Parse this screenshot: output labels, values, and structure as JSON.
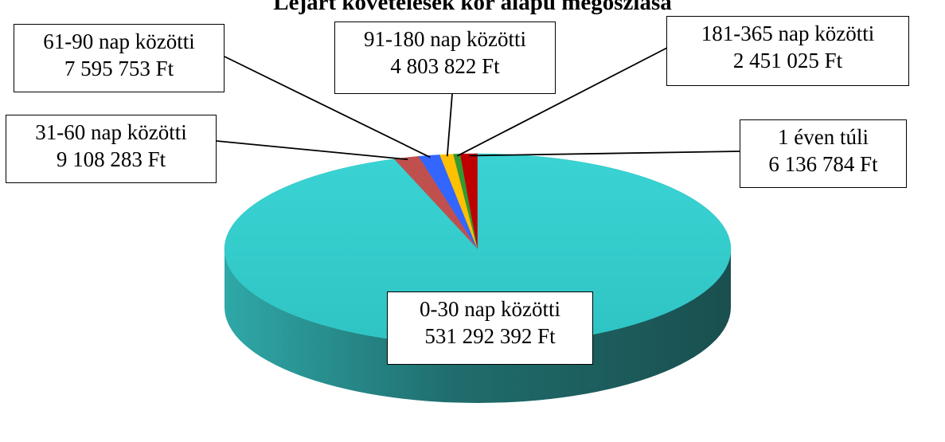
{
  "chart_data": {
    "type": "pie",
    "title": "Lejárt követelések kor alapú megoszlása",
    "categories": [
      "0-30 nap közötti",
      "31-60 nap közötti",
      "61-90 nap közötti",
      "91-180 nap közötti",
      "181-365 nap közötti",
      "1 éven túli"
    ],
    "values": [
      531292392,
      9108283,
      7595753,
      4803822,
      2451025,
      6136784
    ],
    "value_labels": [
      "531 292 392 Ft",
      "9 108 283 Ft",
      "7 595 753 Ft",
      "4 803 822 Ft",
      "2 451 025 Ft",
      "6 136 784 Ft"
    ],
    "unit": "Ft",
    "colors": [
      "#33c9c9",
      "#c0504d",
      "#3366ff",
      "#ffc000",
      "#339933",
      "#c00000"
    ],
    "legend": "none"
  }
}
